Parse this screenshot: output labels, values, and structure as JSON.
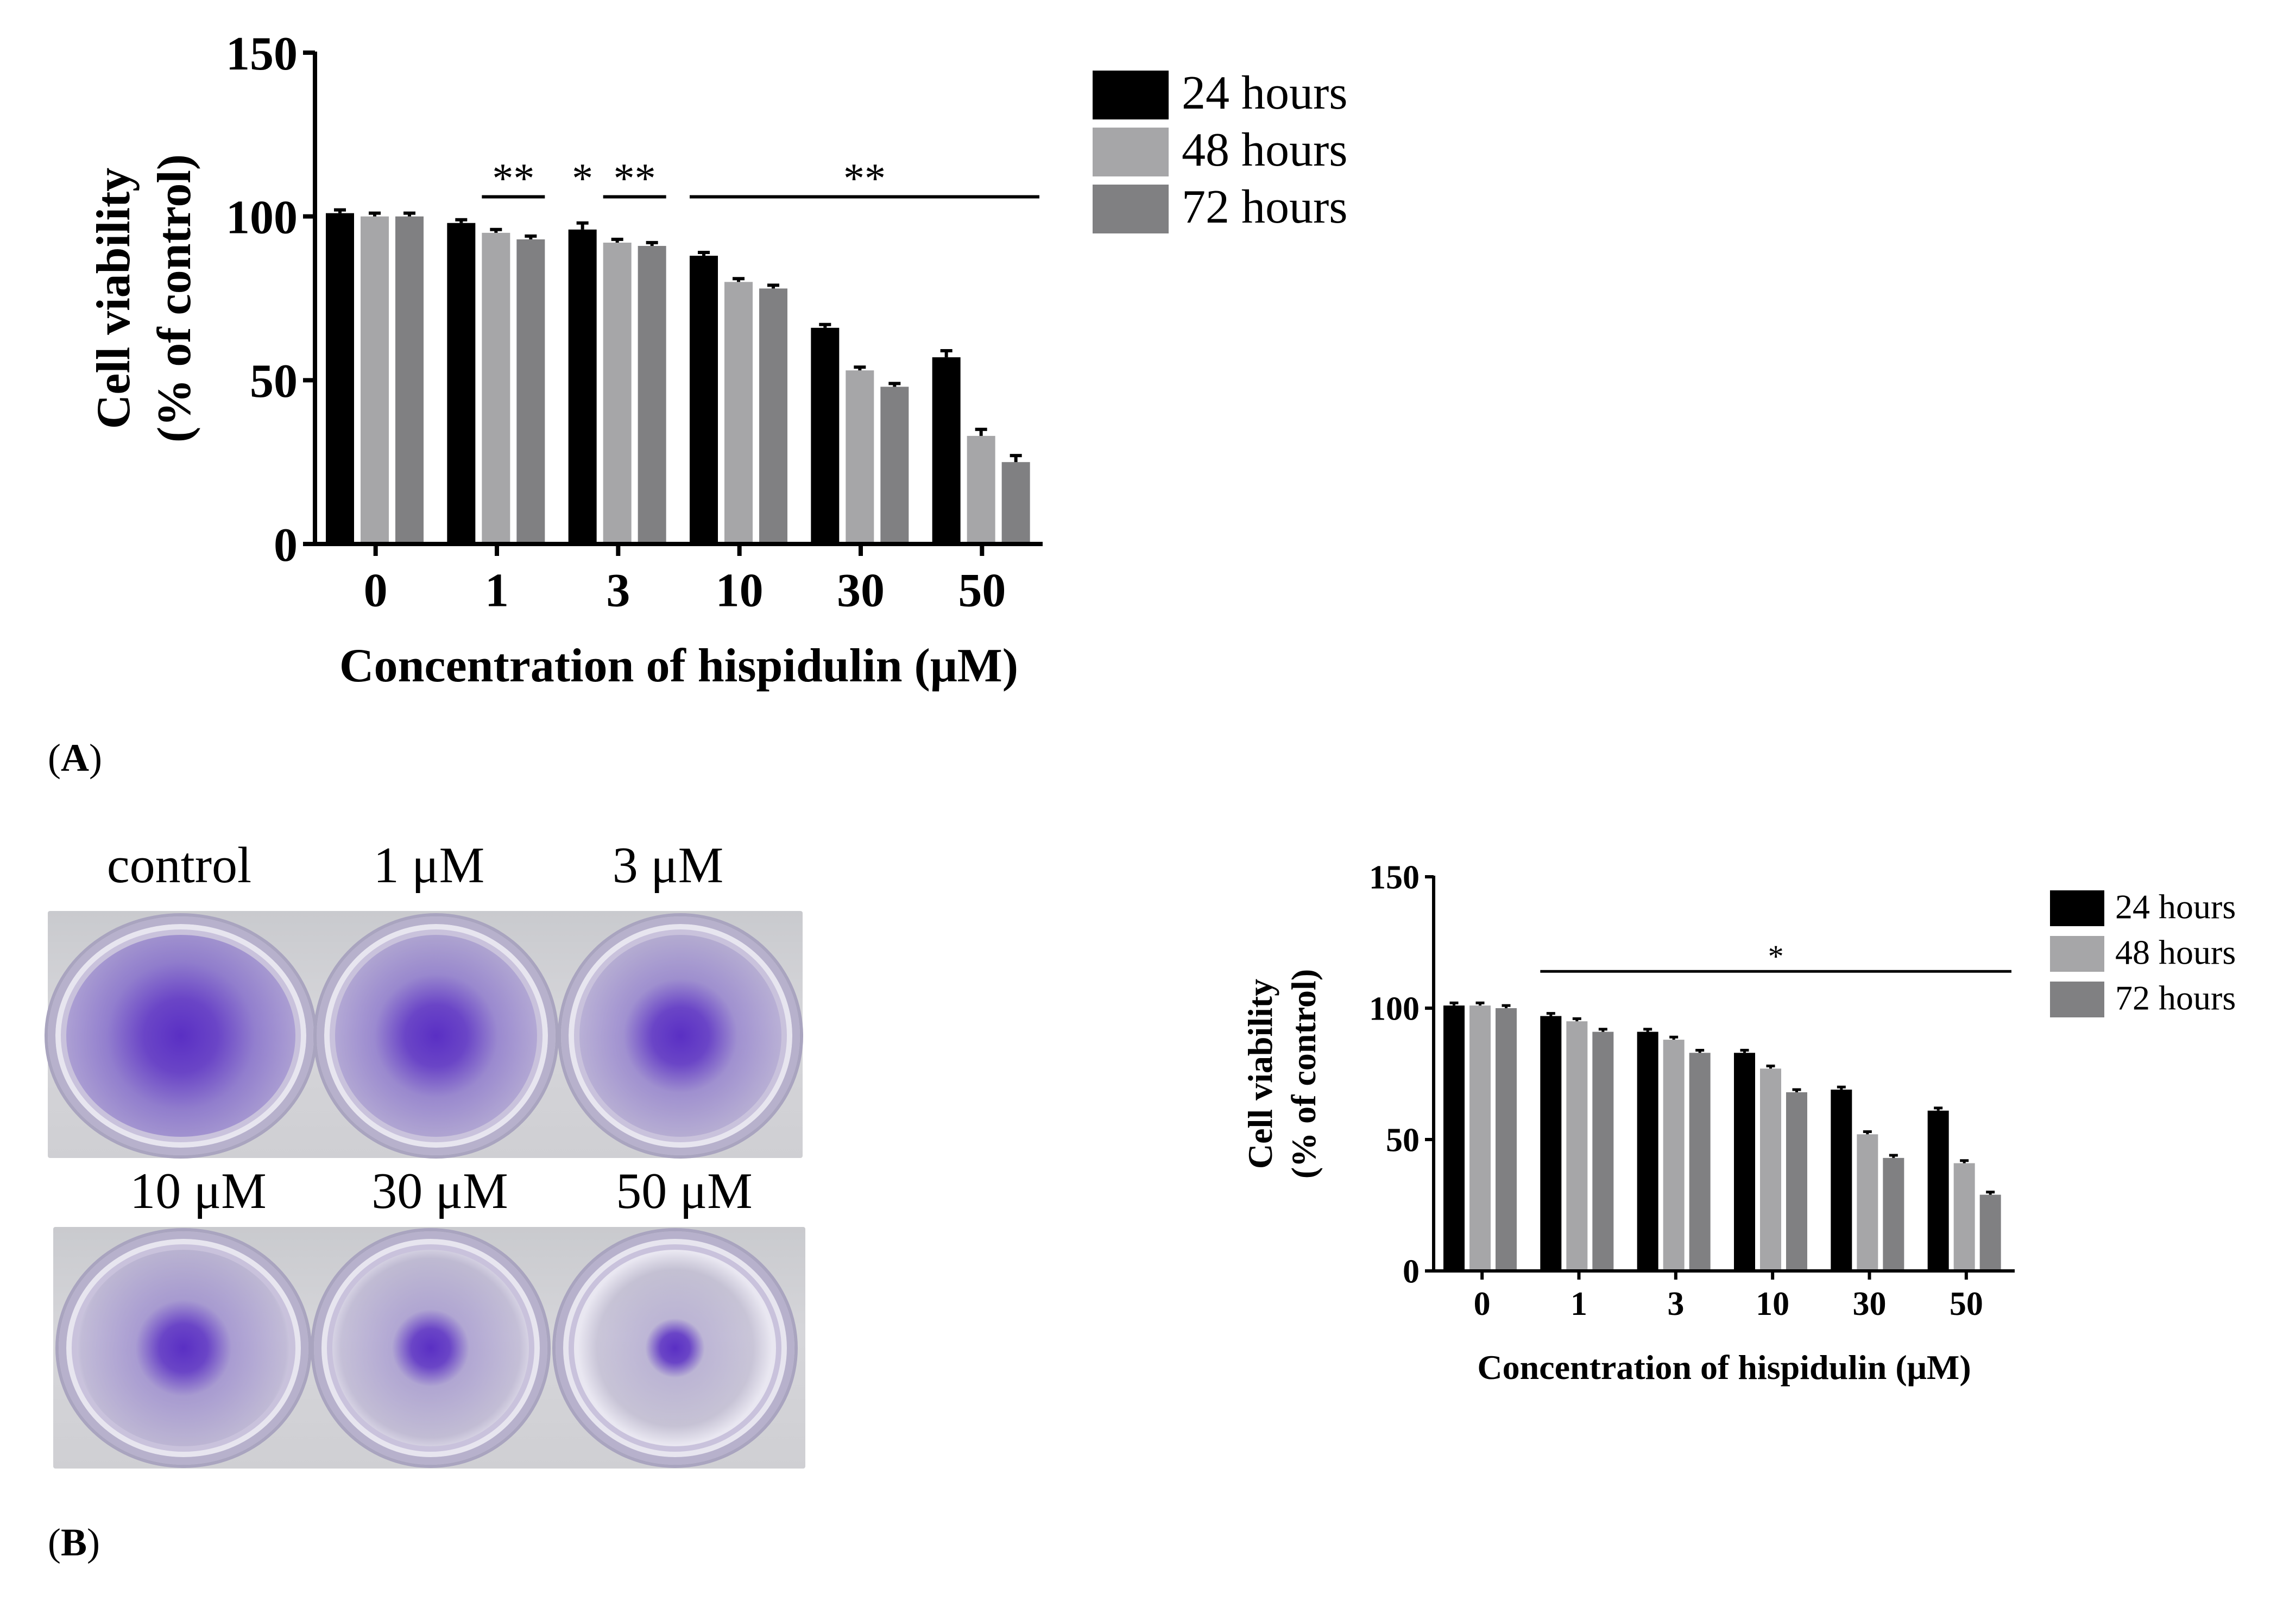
{
  "panel_a": {
    "label_open": "(",
    "label_letter": "A",
    "label_close": ")"
  },
  "panel_b": {
    "label_open": "(",
    "label_letter": "B",
    "label_close": ")",
    "plate_labels": [
      "control",
      "1 μM",
      "3 μM",
      "10 μM",
      "30 μM",
      "50 μM"
    ],
    "stain_intensity": [
      1.0,
      0.85,
      0.75,
      0.6,
      0.45,
      0.25
    ],
    "stain_color": "#5a2fc4"
  },
  "colors": {
    "h24": "#000000",
    "h48": "#a6a6a8",
    "h72": "#808082"
  },
  "chart_data": [
    {
      "id": "A",
      "type": "bar",
      "categories": [
        "0",
        "1",
        "3",
        "10",
        "30",
        "50"
      ],
      "series": [
        {
          "name": "24 hours",
          "values": [
            101,
            98,
            96,
            88,
            66,
            57
          ],
          "errors": [
            1,
            1,
            2,
            1,
            1,
            2
          ]
        },
        {
          "name": "48 hours",
          "values": [
            100,
            95,
            92,
            80,
            53,
            33
          ],
          "errors": [
            1,
            1,
            1,
            1,
            1,
            2
          ]
        },
        {
          "name": "72 hours",
          "values": [
            100,
            93,
            91,
            78,
            48,
            25
          ],
          "errors": [
            1,
            1,
            1,
            1,
            1,
            2
          ]
        }
      ],
      "ylim": [
        0,
        150
      ],
      "yticks": [
        "0",
        "50",
        "100",
        "150"
      ],
      "xlabel": "Concentration of hispidulin (μM)",
      "ylabel_line1": "Cell viability",
      "ylabel_line2": "(% of control)",
      "legend": [
        "24 hours",
        "48 hours",
        "72 hours"
      ],
      "legend_position": "top-right",
      "annotations": [
        {
          "text": "**",
          "y": 106,
          "from_cat": 1,
          "from_series": 1,
          "to_cat": 1,
          "to_series": 2,
          "line": true
        },
        {
          "text": "*",
          "y": 106,
          "from_cat": 2,
          "from_series": 0,
          "to_cat": 2,
          "to_series": 0,
          "line": false
        },
        {
          "text": "**",
          "y": 106,
          "from_cat": 2,
          "from_series": 1,
          "to_cat": 2,
          "to_series": 2,
          "line": true
        },
        {
          "text": "**",
          "y": 106,
          "from_cat": 3,
          "from_series": 0,
          "to_cat": 5,
          "to_series": 2,
          "line": true,
          "extend": true
        }
      ]
    },
    {
      "id": "B",
      "type": "bar",
      "categories": [
        "0",
        "1",
        "3",
        "10",
        "30",
        "50"
      ],
      "series": [
        {
          "name": "24 hours",
          "values": [
            101,
            97,
            91,
            83,
            69,
            61
          ],
          "errors": [
            1,
            1,
            1,
            1,
            1,
            1
          ]
        },
        {
          "name": "48 hours",
          "values": [
            101,
            95,
            88,
            77,
            52,
            41
          ],
          "errors": [
            1,
            1,
            1,
            1,
            1,
            1
          ]
        },
        {
          "name": "72 hours",
          "values": [
            100,
            91,
            83,
            68,
            43,
            29
          ],
          "errors": [
            1,
            1,
            1,
            1,
            1,
            1
          ]
        }
      ],
      "ylim": [
        0,
        150
      ],
      "yticks": [
        "0",
        "50",
        "100",
        "150"
      ],
      "xlabel": "Concentration of hispidulin (μM)",
      "ylabel_line1": "Cell viability",
      "ylabel_line2": "(% of control)",
      "legend": [
        "24 hours",
        "48 hours",
        "72 hours"
      ],
      "legend_position": "top-right",
      "annotations": [
        {
          "text": "*",
          "y": 114,
          "from_cat": 1,
          "from_series": 0,
          "to_cat": 5,
          "to_series": 2,
          "line": true,
          "extend": true
        }
      ]
    }
  ]
}
